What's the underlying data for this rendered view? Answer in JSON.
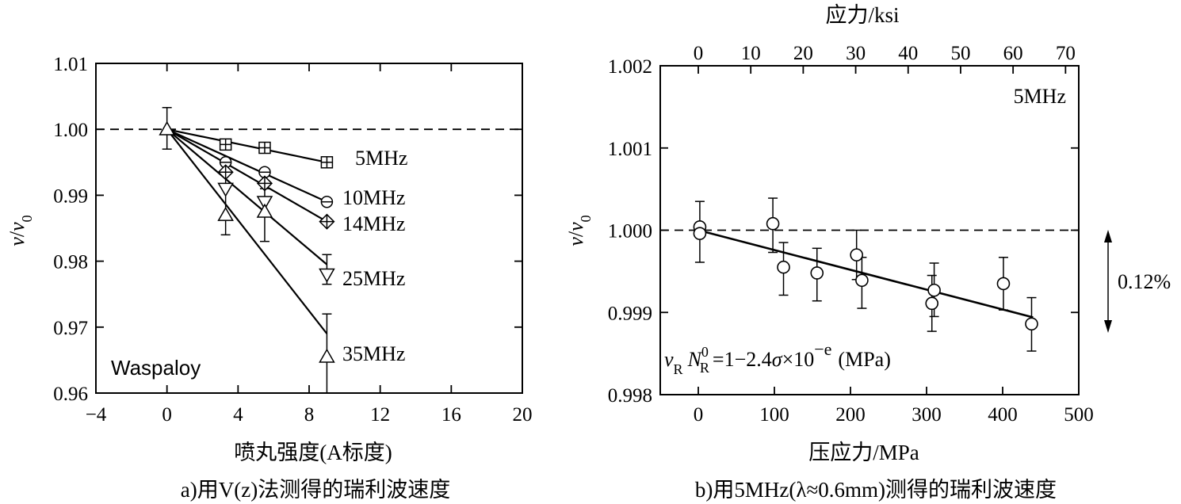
{
  "chart_data": [
    {
      "type": "scatter",
      "caption": "a)用V(z)法测得的瑞利波速度",
      "xlabel": "喷丸强度(A标度)",
      "ylabel": "v/v0",
      "xlim": [
        -4,
        20
      ],
      "ylim": [
        0.96,
        1.01
      ],
      "xticks": [
        -4,
        0,
        4,
        8,
        12,
        16,
        20
      ],
      "xtick_labels": [
        "−4",
        "0",
        "4",
        "8",
        "12",
        "16",
        "20"
      ],
      "yticks": [
        0.96,
        0.97,
        0.98,
        0.99,
        1.0,
        1.01
      ],
      "ytick_labels": [
        "0.96",
        "0.97",
        "0.98",
        "0.99",
        "1.00",
        "1.01"
      ],
      "reference_line": 1.0,
      "annotation": "Waspaloy",
      "series": [
        {
          "name": "5MHz",
          "marker": "square-plus",
          "x": [
            0,
            3.3,
            5.5,
            9
          ],
          "y": [
            1.0,
            0.9977,
            0.9972,
            0.995
          ]
        },
        {
          "name": "10MHz",
          "marker": "circle-minus",
          "x": [
            0,
            3.3,
            5.5,
            9
          ],
          "y": [
            1.0,
            0.995,
            0.9935,
            0.989
          ]
        },
        {
          "name": "14MHz",
          "marker": "diamond-plus",
          "x": [
            0,
            3.3,
            5.5,
            9
          ],
          "y": [
            1.0,
            0.9935,
            0.9918,
            0.986
          ]
        },
        {
          "name": "25MHz",
          "marker": "triangle-down",
          "x": [
            0,
            3.3,
            5.5,
            9
          ],
          "y": [
            1.0,
            0.991,
            0.989,
            0.978
          ]
        },
        {
          "name": "35MHz",
          "marker": "triangle-up",
          "x": [
            0,
            3.3,
            5.5,
            9
          ],
          "y": [
            1.0,
            0.987,
            0.9875,
            0.9655
          ]
        }
      ],
      "errorbars": [
        {
          "x": 0,
          "low": 0.997,
          "high": 1.0033
        },
        {
          "x": 3.3,
          "low": 0.984,
          "high": 0.9935
        },
        {
          "x": 5.5,
          "low": 0.983,
          "high": 0.991
        },
        {
          "x": 9,
          "low": 0.9765,
          "high": 0.981
        },
        {
          "x": 9,
          "low": 0.96,
          "high": 0.972
        }
      ],
      "fit_lines": [
        {
          "name": "5MHz",
          "end_y": 0.995
        },
        {
          "name": "10MHz",
          "end_y": 0.989
        },
        {
          "name": "14MHz",
          "end_y": 0.986
        },
        {
          "name": "25MHz",
          "end_y": 0.9795
        },
        {
          "name": "35MHz",
          "end_y": 0.969
        }
      ]
    },
    {
      "type": "scatter",
      "caption": "b)用5MHz(λ≈0.6mm)测得的瑞利波速度",
      "xlabel": "压应力/MPa",
      "x2label": "应力/ksi",
      "ylabel": "v/v0",
      "xlim": [
        -50,
        500
      ],
      "ylim": [
        0.998,
        1.002
      ],
      "xticks": [
        0,
        100,
        200,
        300,
        400,
        500
      ],
      "xtick_labels": [
        "0",
        "100",
        "200",
        "300",
        "400",
        "500"
      ],
      "x2ticks_ksi": [
        0,
        10,
        20,
        30,
        40,
        50,
        60,
        70
      ],
      "x2tick_labels": [
        "0",
        "10",
        "20",
        "30",
        "40",
        "50",
        "60",
        "70"
      ],
      "yticks": [
        0.998,
        0.999,
        1.0,
        1.001,
        1.002
      ],
      "ytick_labels": [
        "0.998",
        "0.999",
        "1.000",
        "1.001",
        "1.002"
      ],
      "reference_line": 1.0,
      "annotation": "5MHz",
      "range_annotation": "0.12%",
      "formula": {
        "v": "v",
        "v_sub": "R",
        "n": "N",
        "n_sub": "R",
        "n_sup": "0",
        "eq": "=1−2.4",
        "sigma": "σ",
        "times": "×10",
        "exp": "−e",
        "unit": "(MPa)"
      },
      "points": [
        {
          "x": 2,
          "y": 1.00004
        },
        {
          "x": 2,
          "y": 0.99996
        },
        {
          "x": 98,
          "y": 1.00008
        },
        {
          "x": 112,
          "y": 0.99955
        },
        {
          "x": 156,
          "y": 0.99948
        },
        {
          "x": 208,
          "y": 0.9997
        },
        {
          "x": 215,
          "y": 0.99939
        },
        {
          "x": 307,
          "y": 0.99911
        },
        {
          "x": 310,
          "y": 0.99927
        },
        {
          "x": 401,
          "y": 0.99935
        },
        {
          "x": 438,
          "y": 0.99886
        }
      ],
      "errorbars": [
        {
          "x": 2,
          "low": 0.99961,
          "high": 1.00035
        },
        {
          "x": 98,
          "low": 0.99973,
          "high": 1.00039
        },
        {
          "x": 112,
          "low": 0.99921,
          "high": 0.99985
        },
        {
          "x": 156,
          "low": 0.99914,
          "high": 0.99978
        },
        {
          "x": 208,
          "low": 0.9994,
          "high": 1.0
        },
        {
          "x": 215,
          "low": 0.99905,
          "high": 0.99967
        },
        {
          "x": 307,
          "low": 0.99877,
          "high": 0.99945
        },
        {
          "x": 310,
          "low": 0.99895,
          "high": 0.9996
        },
        {
          "x": 401,
          "low": 0.99903,
          "high": 0.99967
        },
        {
          "x": 438,
          "low": 0.99853,
          "high": 0.99918
        }
      ],
      "fit_line": {
        "x": [
          0,
          440
        ],
        "y": [
          1.0,
          0.99894
        ]
      }
    }
  ]
}
